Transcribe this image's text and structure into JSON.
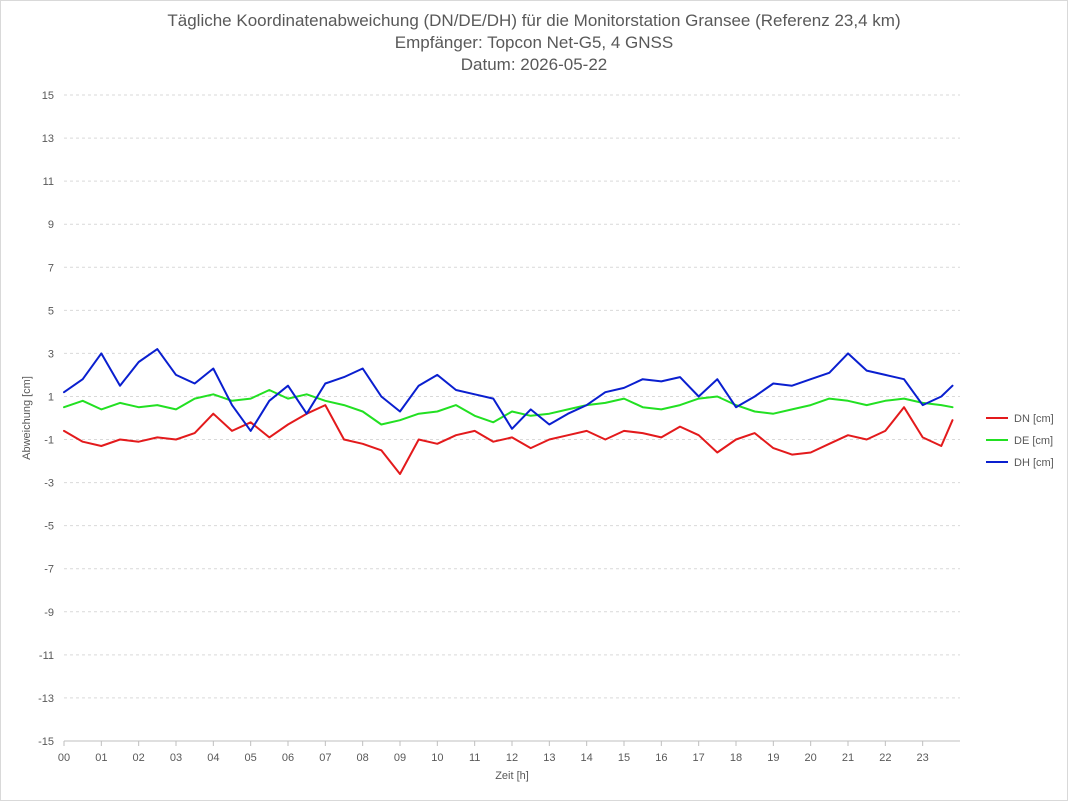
{
  "chart_data": {
    "type": "line",
    "title": "Tägliche Koordinatenabweichung (DN/DE/DH) für die Monitorstation Gransee (Referenz 23,4 km)",
    "subtitle": "Empfänger: Topcon Net-G5, 4 GNSS",
    "date_line": "Datum: 2026-05-22",
    "xlabel": "Zeit [h]",
    "ylabel": "Abweichung [cm]",
    "xlim": [
      0,
      24
    ],
    "ylim": [
      -15,
      15
    ],
    "x_tick_labels": [
      "00",
      "01",
      "02",
      "03",
      "04",
      "05",
      "06",
      "07",
      "08",
      "09",
      "10",
      "11",
      "12",
      "13",
      "14",
      "15",
      "16",
      "17",
      "18",
      "19",
      "20",
      "21",
      "22",
      "23"
    ],
    "y_ticks": [
      15,
      13,
      11,
      9,
      7,
      5,
      3,
      1,
      -1,
      -3,
      -5,
      -7,
      -9,
      -11,
      -13,
      -15
    ],
    "y_tick_labels": [
      "15",
      "13",
      "11",
      "9",
      "7",
      "5",
      "3",
      "1",
      "-1",
      "-3",
      "-5",
      "-7",
      "-9",
      "-11",
      "-13",
      "-15"
    ],
    "grid": "horizontal dashed",
    "legend_position": "right",
    "series": [
      {
        "name": "DN [cm]",
        "color": "#e31a1c",
        "x": [
          0,
          0.5,
          1,
          1.5,
          2,
          2.5,
          3,
          3.5,
          4,
          4.5,
          5,
          5.5,
          6,
          6.5,
          7,
          7.5,
          8,
          8.5,
          9,
          9.5,
          10,
          10.5,
          11,
          11.5,
          12,
          12.5,
          13,
          13.5,
          14,
          14.5,
          15,
          15.5,
          16,
          16.5,
          17,
          17.5,
          18,
          18.5,
          19,
          19.5,
          20,
          20.5,
          21,
          21.5,
          22,
          22.5,
          23,
          23.5,
          23.8
        ],
        "values": [
          -0.6,
          -1.1,
          -1.3,
          -1.0,
          -1.1,
          -0.9,
          -1.0,
          -0.7,
          0.2,
          -0.6,
          -0.2,
          -0.9,
          -0.3,
          0.2,
          0.6,
          -1.0,
          -1.2,
          -1.5,
          -2.6,
          -1.0,
          -1.2,
          -0.8,
          -0.6,
          -1.1,
          -0.9,
          -1.4,
          -1.0,
          -0.8,
          -0.6,
          -1.0,
          -0.6,
          -0.7,
          -0.9,
          -0.4,
          -0.8,
          -1.6,
          -1.0,
          -0.7,
          -1.4,
          -1.7,
          -1.6,
          -1.2,
          -0.8,
          -1.0,
          -0.6,
          0.5,
          -0.9,
          -1.3,
          -0.1
        ]
      },
      {
        "name": "DE [cm]",
        "color": "#22e022",
        "x": [
          0,
          0.5,
          1,
          1.5,
          2,
          2.5,
          3,
          3.5,
          4,
          4.5,
          5,
          5.5,
          6,
          6.5,
          7,
          7.5,
          8,
          8.5,
          9,
          9.5,
          10,
          10.5,
          11,
          11.5,
          12,
          12.5,
          13,
          13.5,
          14,
          14.5,
          15,
          15.5,
          16,
          16.5,
          17,
          17.5,
          18,
          18.5,
          19,
          19.5,
          20,
          20.5,
          21,
          21.5,
          22,
          22.5,
          23,
          23.5,
          23.8
        ],
        "values": [
          0.5,
          0.8,
          0.4,
          0.7,
          0.5,
          0.6,
          0.4,
          0.9,
          1.1,
          0.8,
          0.9,
          1.3,
          0.9,
          1.1,
          0.8,
          0.6,
          0.3,
          -0.3,
          -0.1,
          0.2,
          0.3,
          0.6,
          0.1,
          -0.2,
          0.3,
          0.1,
          0.2,
          0.4,
          0.6,
          0.7,
          0.9,
          0.5,
          0.4,
          0.6,
          0.9,
          1.0,
          0.6,
          0.3,
          0.2,
          0.4,
          0.6,
          0.9,
          0.8,
          0.6,
          0.8,
          0.9,
          0.7,
          0.6,
          0.5
        ]
      },
      {
        "name": "DH [cm]",
        "color": "#0a1fcf",
        "x": [
          0,
          0.5,
          1,
          1.5,
          2,
          2.5,
          3,
          3.5,
          4,
          4.5,
          5,
          5.5,
          6,
          6.5,
          7,
          7.5,
          8,
          8.5,
          9,
          9.5,
          10,
          10.5,
          11,
          11.5,
          12,
          12.5,
          13,
          13.5,
          14,
          14.5,
          15,
          15.5,
          16,
          16.5,
          17,
          17.5,
          18,
          18.5,
          19,
          19.5,
          20,
          20.5,
          21,
          21.5,
          22,
          22.5,
          23,
          23.5,
          23.8
        ],
        "values": [
          1.2,
          1.8,
          3.0,
          1.5,
          2.6,
          3.2,
          2.0,
          1.6,
          2.3,
          0.6,
          -0.6,
          0.8,
          1.5,
          0.2,
          1.6,
          1.9,
          2.3,
          1.0,
          0.3,
          1.5,
          2.0,
          1.3,
          1.1,
          0.9,
          -0.5,
          0.4,
          -0.3,
          0.2,
          0.6,
          1.2,
          1.4,
          1.8,
          1.7,
          1.9,
          1.0,
          1.8,
          0.5,
          1.0,
          1.6,
          1.5,
          1.8,
          2.1,
          3.0,
          2.2,
          2.0,
          1.8,
          0.6,
          1.0,
          1.5
        ]
      }
    ]
  }
}
